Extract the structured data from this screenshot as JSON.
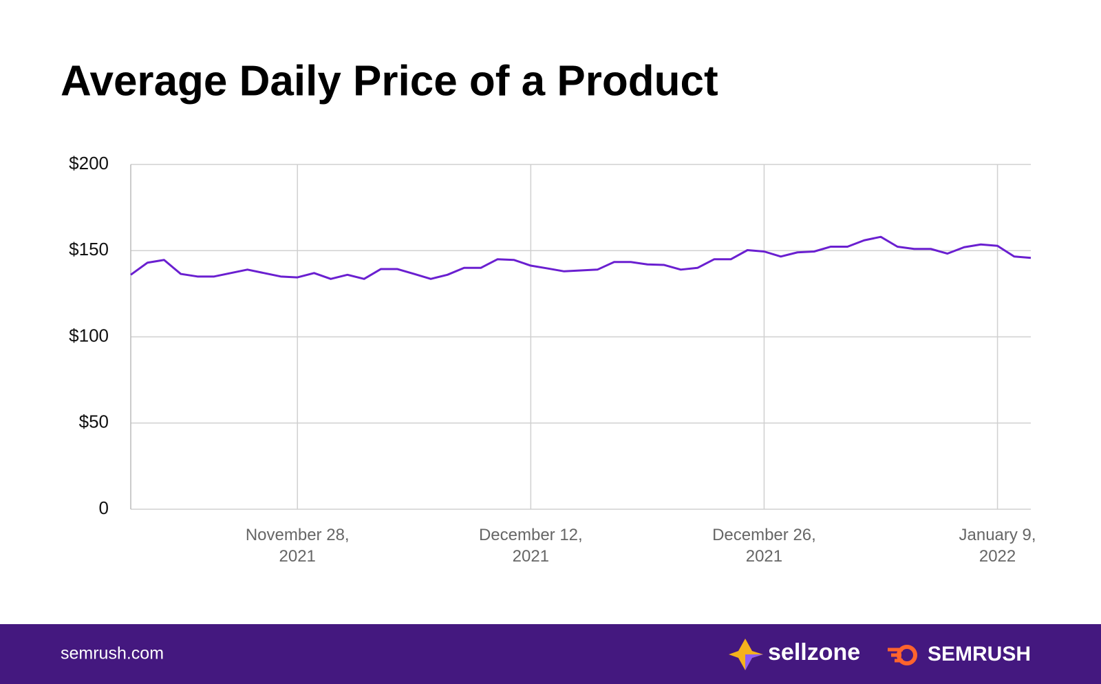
{
  "chart_data": {
    "type": "line",
    "title": "Average Daily Price of a Product",
    "x": [
      "2021-11-18",
      "2021-11-19",
      "2021-11-20",
      "2021-11-21",
      "2021-11-22",
      "2021-11-23",
      "2021-11-24",
      "2021-11-25",
      "2021-11-26",
      "2021-11-27",
      "2021-11-28",
      "2021-11-29",
      "2021-11-30",
      "2021-12-01",
      "2021-12-02",
      "2021-12-03",
      "2021-12-04",
      "2021-12-05",
      "2021-12-06",
      "2021-12-07",
      "2021-12-08",
      "2021-12-09",
      "2021-12-10",
      "2021-12-11",
      "2021-12-12",
      "2021-12-13",
      "2021-12-14",
      "2021-12-15",
      "2021-12-16",
      "2021-12-17",
      "2021-12-18",
      "2021-12-19",
      "2021-12-20",
      "2021-12-21",
      "2021-12-22",
      "2021-12-23",
      "2021-12-24",
      "2021-12-25",
      "2021-12-26",
      "2021-12-27",
      "2021-12-28",
      "2021-12-29",
      "2021-12-30",
      "2021-12-31",
      "2022-01-01",
      "2022-01-02",
      "2022-01-03",
      "2022-01-04",
      "2022-01-05",
      "2022-01-06",
      "2022-01-07",
      "2022-01-08",
      "2022-01-09",
      "2022-01-10",
      "2022-01-11"
    ],
    "values": [
      136,
      143,
      144.6,
      136.5,
      135,
      135,
      137,
      139,
      137,
      135,
      134.5,
      137,
      133.6,
      136,
      133.6,
      139.3,
      139.3,
      136.5,
      133.6,
      136,
      140,
      140,
      145,
      144.6,
      141.3,
      139.7,
      138,
      138.5,
      139,
      143.4,
      143.4,
      142,
      141.7,
      139,
      140,
      145,
      145,
      150.3,
      149.5,
      146.6,
      149,
      149.5,
      152.3,
      152.3,
      156,
      158,
      152.3,
      151,
      151,
      148.3,
      152,
      153.6,
      152.8,
      146.6,
      145.8
    ],
    "color": "#6a1fd0",
    "xlim": [
      "2021-11-18",
      "2022-01-11"
    ],
    "xticks": [
      {
        "value": "2021-11-28",
        "label": "November 28, 2021"
      },
      {
        "value": "2021-12-12",
        "label": "December 12, 2021"
      },
      {
        "value": "2021-12-26",
        "label": "December 26, 2021"
      },
      {
        "value": "2022-01-09",
        "label": "January 9, 2022"
      }
    ],
    "ylim": [
      0,
      200
    ],
    "yticks": [
      0,
      {
        "value": 50,
        "label": "$50"
      },
      {
        "value": 100,
        "label": "$100"
      },
      {
        "value": 150,
        "label": "$150"
      },
      {
        "value": 200,
        "label": "$200"
      }
    ],
    "grid": true
  },
  "footer": {
    "site": "semrush.com",
    "logo_1": "sellzone",
    "logo_2": "SEMRUSH"
  }
}
